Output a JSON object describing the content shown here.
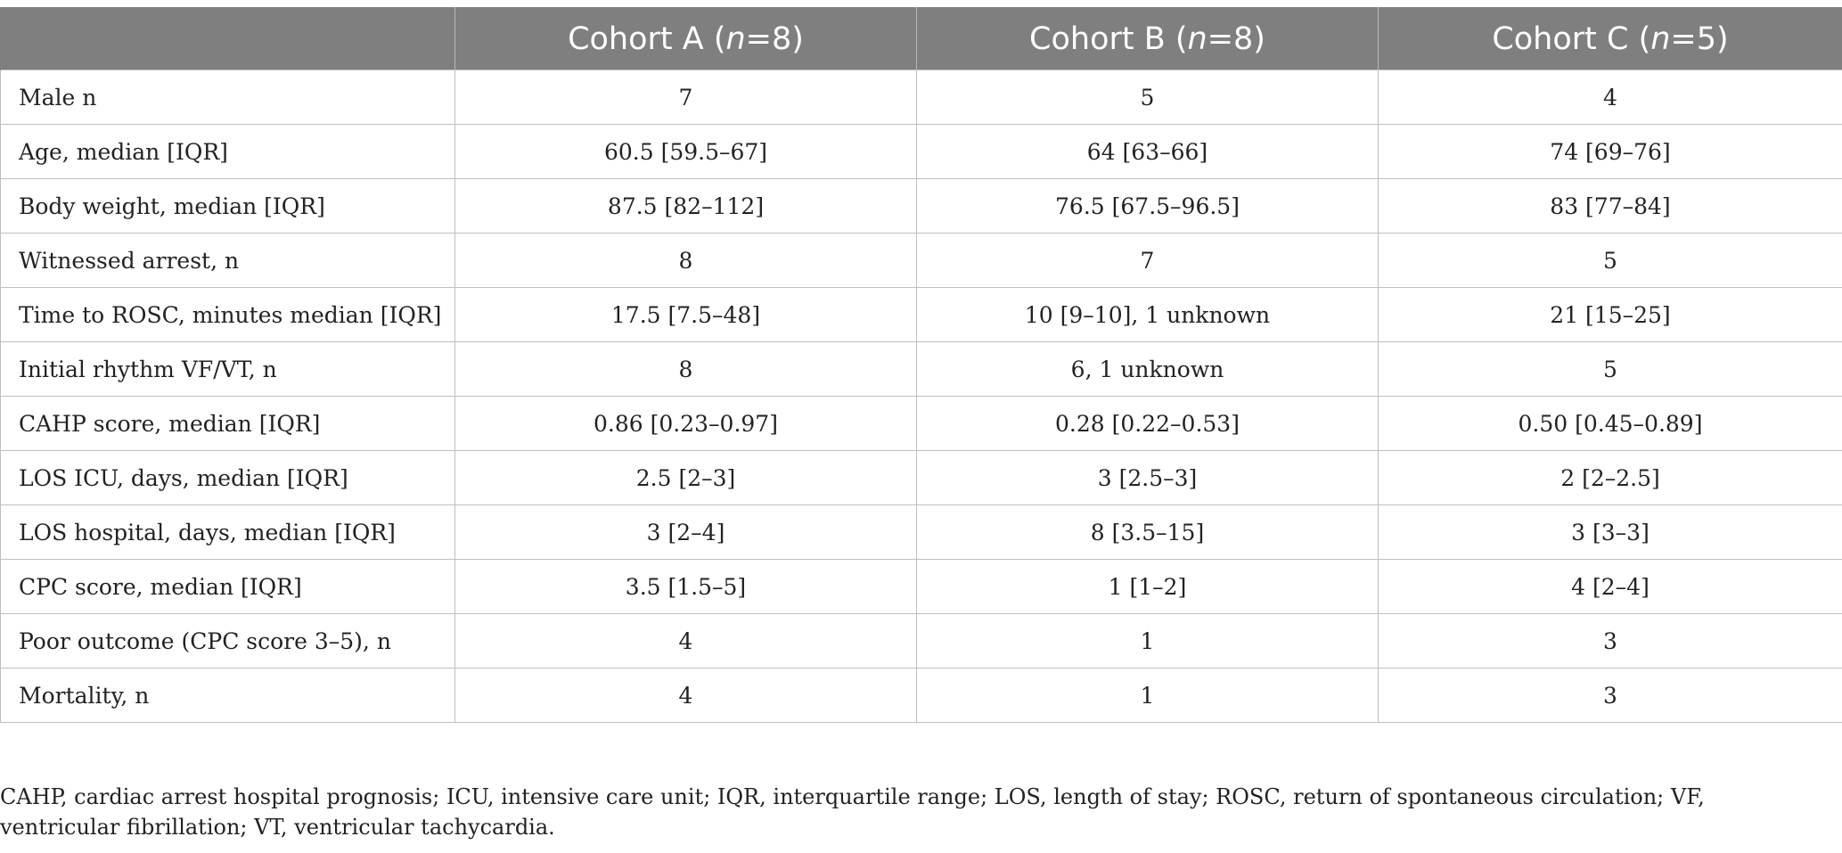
{
  "table": {
    "columns": [
      "",
      {
        "prefix": "Cohort A (",
        "italic": "n",
        "suffix": "=8)"
      },
      {
        "prefix": "Cohort B (",
        "italic": "n",
        "suffix": "=8)"
      },
      {
        "prefix": "Cohort C (",
        "italic": "n",
        "suffix": "=5)"
      }
    ],
    "rows": [
      {
        "label": "Male n",
        "a": "7",
        "b": "5",
        "c": "4"
      },
      {
        "label": "Age, median [IQR]",
        "a": "60.5 [59.5–67]",
        "b": "64 [63–66]",
        "c": "74 [69–76]"
      },
      {
        "label": "Body weight, median [IQR]",
        "a": "87.5 [82–112]",
        "b": "76.5 [67.5–96.5]",
        "c": "83 [77–84]"
      },
      {
        "label": "Witnessed arrest, n",
        "a": "8",
        "b": "7",
        "c": "5"
      },
      {
        "label": "Time to ROSC, minutes median [IQR]",
        "a": "17.5 [7.5–48]",
        "b": "10 [9–10], 1 unknown",
        "c": "21 [15–25]"
      },
      {
        "label": "Initial rhythm VF/VT, n",
        "a": "8",
        "b": "6, 1 unknown",
        "c": "5"
      },
      {
        "label": "CAHP score, median [IQR]",
        "a": "0.86 [0.23–0.97]",
        "b": "0.28 [0.22–0.53]",
        "c": "0.50 [0.45–0.89]"
      },
      {
        "label": "LOS ICU, days, median [IQR]",
        "a": "2.5 [2–3]",
        "b": "3 [2.5–3]",
        "c": "2 [2–2.5]"
      },
      {
        "label": "LOS hospital, days, median [IQR]",
        "a": "3 [2–4]",
        "b": "8 [3.5–15]",
        "c": "3 [3–3]"
      },
      {
        "label": "CPC score, median [IQR]",
        "a": "3.5 [1.5–5]",
        "b": "1 [1–2]",
        "c": "4 [2–4]"
      },
      {
        "label": "Poor outcome (CPC score 3–5), n",
        "a": "4",
        "b": "1",
        "c": "3"
      },
      {
        "label": "Mortality, n",
        "a": "4",
        "b": "1",
        "c": "3"
      }
    ]
  },
  "footnote": "CAHP, cardiac arrest hospital prognosis; ICU, intensive care unit; IQR, interquartile range; LOS, length of stay; ROSC, return of spontaneous circulation; VF, ventricular fibrillation; VT, ventricular tachycardia.",
  "colors": {
    "header_bg": "#7f7f7f",
    "header_text": "#ffffff",
    "grid": "#bfbfbf"
  }
}
